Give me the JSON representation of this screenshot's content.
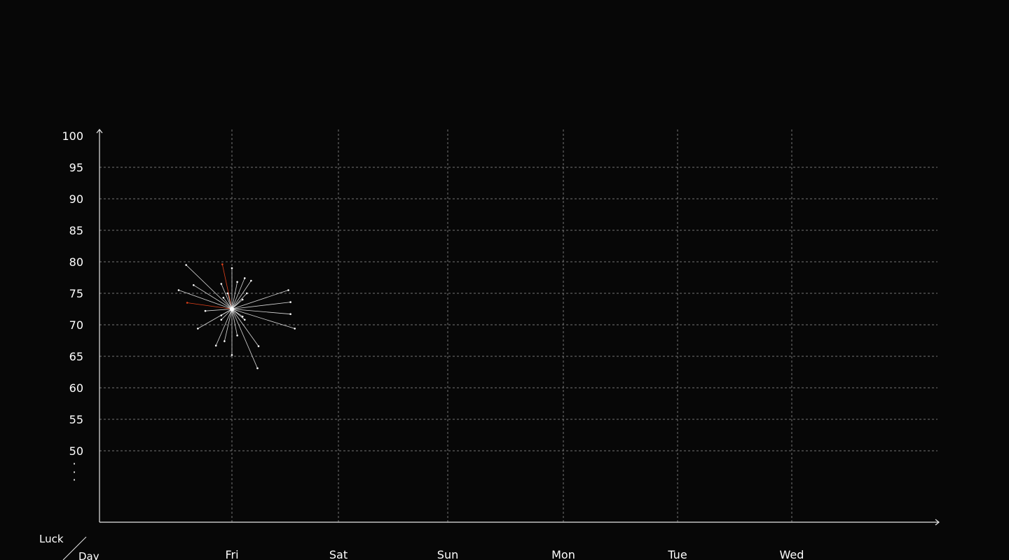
{
  "axis_corner": {
    "y_label": "Luck",
    "x_label": "Day"
  },
  "y_axis": {
    "ellipsis": "·",
    "ticks": [
      "50",
      "55",
      "60",
      "65",
      "70",
      "75",
      "80",
      "85",
      "90",
      "95",
      "100"
    ]
  },
  "x_axis": {
    "ticks": [
      "Fri",
      "Sat",
      "Sun",
      "Mon",
      "Tue",
      "Wed"
    ]
  },
  "colors": {
    "background": "#070707",
    "axis": "#e6e6e6",
    "grid": "#8a8a8a",
    "ray": "#d9d9d9",
    "ray_highlight": "#e0401a",
    "center": "#ffffff"
  },
  "chart_data": {
    "type": "scatter",
    "title": "",
    "xlabel": "Day",
    "ylabel": "Luck",
    "categories": [
      "Fri",
      "Sat",
      "Sun",
      "Mon",
      "Tue",
      "Wed"
    ],
    "ylim": [
      50,
      100
    ],
    "grid": true,
    "center": {
      "x": 0,
      "y": 72.5
    },
    "points": [
      {
        "x": -0.43,
        "y": 79.5,
        "highlight": false
      },
      {
        "x": -0.09,
        "y": 79.6,
        "highlight": true
      },
      {
        "x": 0.0,
        "y": 79.0,
        "highlight": false
      },
      {
        "x": -0.36,
        "y": 76.3,
        "highlight": false
      },
      {
        "x": -0.1,
        "y": 76.5,
        "highlight": false
      },
      {
        "x": 0.05,
        "y": 76.8,
        "highlight": false
      },
      {
        "x": 0.12,
        "y": 77.4,
        "highlight": false
      },
      {
        "x": 0.18,
        "y": 77.0,
        "highlight": false
      },
      {
        "x": -0.5,
        "y": 75.5,
        "highlight": false
      },
      {
        "x": 0.53,
        "y": 75.5,
        "highlight": false
      },
      {
        "x": -0.04,
        "y": 75.0,
        "highlight": false
      },
      {
        "x": 0.14,
        "y": 75.0,
        "highlight": false
      },
      {
        "x": -0.08,
        "y": 74.3,
        "highlight": false
      },
      {
        "x": 0.1,
        "y": 74.0,
        "highlight": false
      },
      {
        "x": -0.42,
        "y": 73.5,
        "highlight": true
      },
      {
        "x": 0.55,
        "y": 73.6,
        "highlight": false
      },
      {
        "x": -0.25,
        "y": 72.2,
        "highlight": false
      },
      {
        "x": 0.55,
        "y": 71.7,
        "highlight": false
      },
      {
        "x": -0.1,
        "y": 71.5,
        "highlight": false
      },
      {
        "x": 0.1,
        "y": 71.3,
        "highlight": false
      },
      {
        "x": -0.1,
        "y": 70.8,
        "highlight": false
      },
      {
        "x": 0.12,
        "y": 70.8,
        "highlight": false
      },
      {
        "x": -0.32,
        "y": 69.4,
        "highlight": false
      },
      {
        "x": 0.59,
        "y": 69.4,
        "highlight": false
      },
      {
        "x": 0.05,
        "y": 68.3,
        "highlight": false
      },
      {
        "x": -0.07,
        "y": 67.4,
        "highlight": false
      },
      {
        "x": -0.15,
        "y": 66.7,
        "highlight": false
      },
      {
        "x": 0.25,
        "y": 66.6,
        "highlight": false
      },
      {
        "x": 0.0,
        "y": 65.2,
        "highlight": false
      },
      {
        "x": 0.24,
        "y": 63.1,
        "highlight": false
      }
    ]
  }
}
